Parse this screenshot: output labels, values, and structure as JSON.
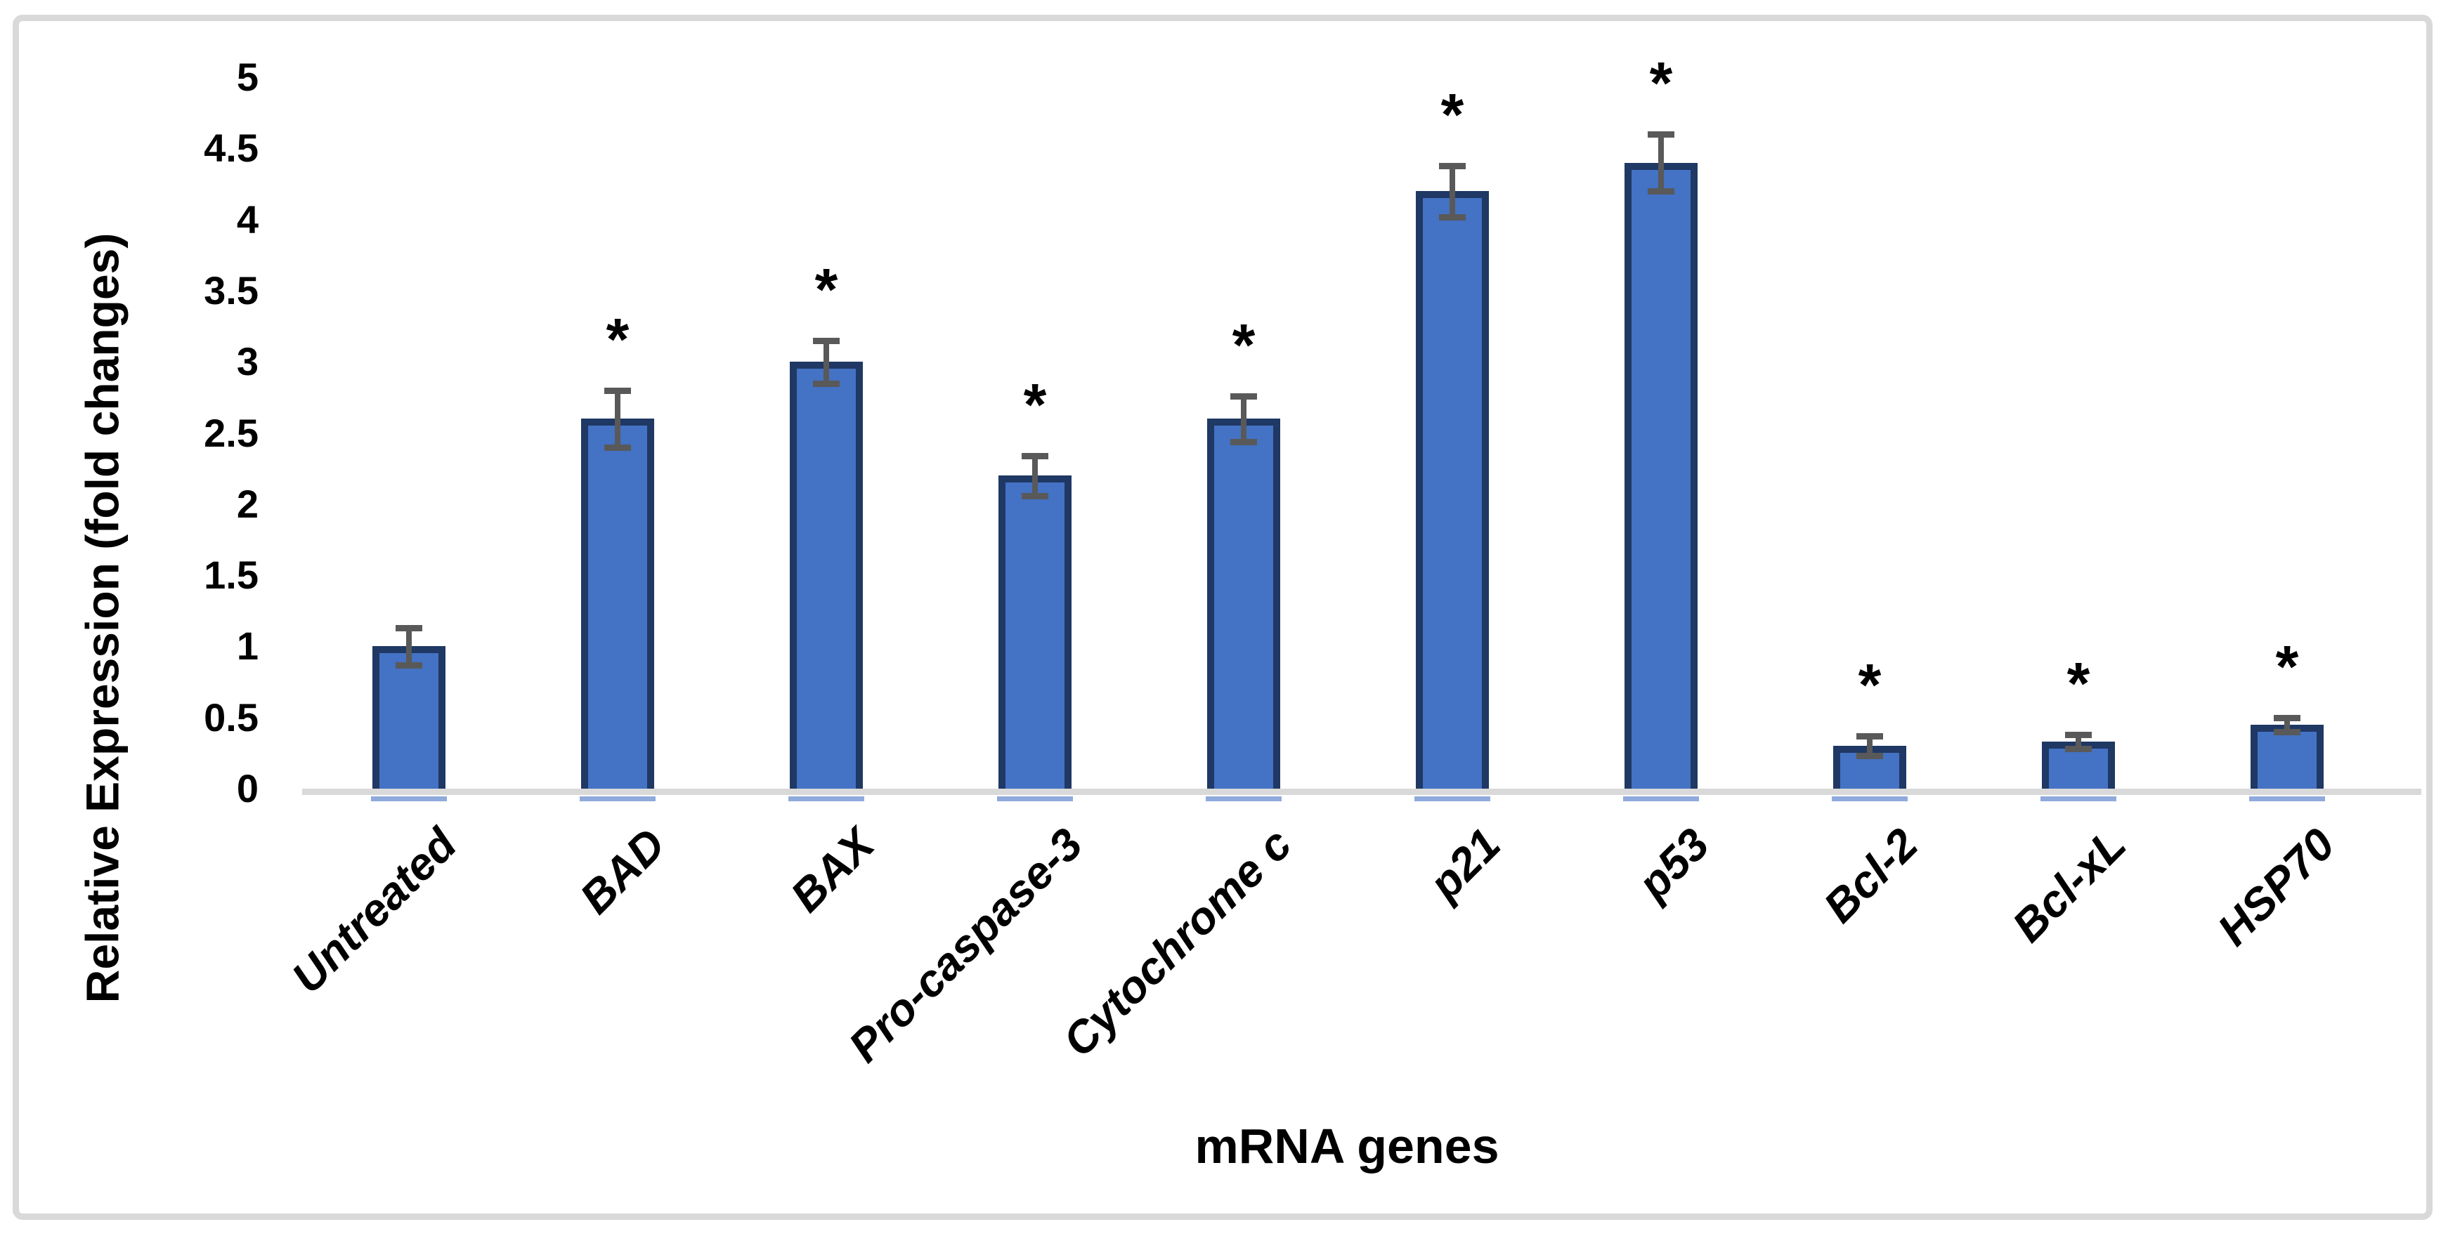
{
  "figure": {
    "background": "#FFFFFF",
    "frame_color": "#D9D9D9"
  },
  "chart_data": {
    "type": "bar",
    "title": "",
    "xlabel": "mRNA genes",
    "ylabel": "Relative Expression (fold changes)",
    "ylim": [
      0,
      5
    ],
    "ytick_step": 0.5,
    "ytick_labels": [
      "0",
      "0.5",
      "1",
      "1.5",
      "2",
      "2.5",
      "3",
      "3.5",
      "4",
      "4.5",
      "5"
    ],
    "grid": false,
    "legend": "none",
    "error_bars": true,
    "significance_marker": "*",
    "categories": [
      "Untreated",
      "BAD",
      "BAX",
      "Pro-caspase-3",
      "Cytochrome c",
      "p21",
      "p53",
      "Bcl-2",
      "Bcl-xL",
      "HSP70"
    ],
    "values": [
      1.0,
      2.6,
      3.0,
      2.2,
      2.6,
      4.2,
      4.4,
      0.3,
      0.33,
      0.45
    ],
    "errors": [
      0.13,
      0.2,
      0.15,
      0.14,
      0.16,
      0.18,
      0.2,
      0.07,
      0.05,
      0.05
    ],
    "significant": [
      false,
      true,
      true,
      true,
      true,
      true,
      true,
      true,
      true,
      true
    ],
    "colors": {
      "bar_fill": "#4472C4",
      "bar_border": "#1F3864",
      "error_bar": "#595959",
      "axis_line": "#D9D9D9",
      "bar_underline": "#8FAADC",
      "text": "#000000"
    }
  }
}
